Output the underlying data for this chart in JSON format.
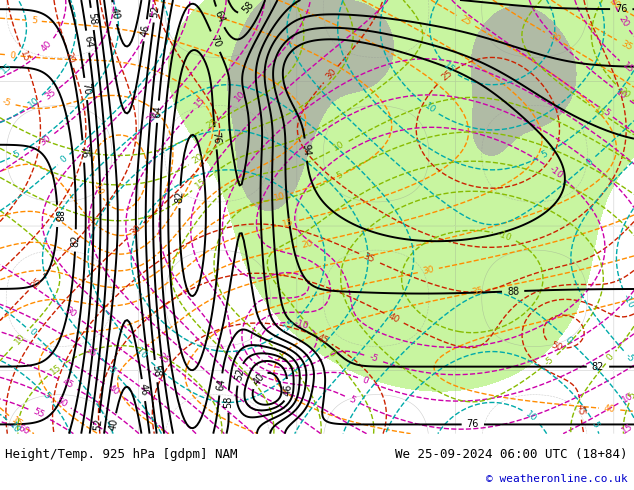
{
  "title_left": "Height/Temp. 925 hPa [gdpm] NAM",
  "title_right": "We 25-09-2024 06:00 UTC (18+84)",
  "copyright": "© weatheronline.co.uk",
  "bg_color": "#e8e8e8",
  "label_bg": "#ffffff",
  "green_fill_color": "#c8f5a0",
  "gray_fill_color": "#a8a8a8",
  "title_fontsize": 9,
  "copyright_fontsize": 8,
  "copyright_color": "#0000cc",
  "contour_black_color": "#000000",
  "contour_orange_color": "#ff8c00",
  "contour_red_color": "#cc2200",
  "contour_magenta_color": "#cc00aa",
  "contour_lime_color": "#88bb00",
  "contour_cyan_color": "#00aaaa",
  "contour_gray_color": "#909090"
}
